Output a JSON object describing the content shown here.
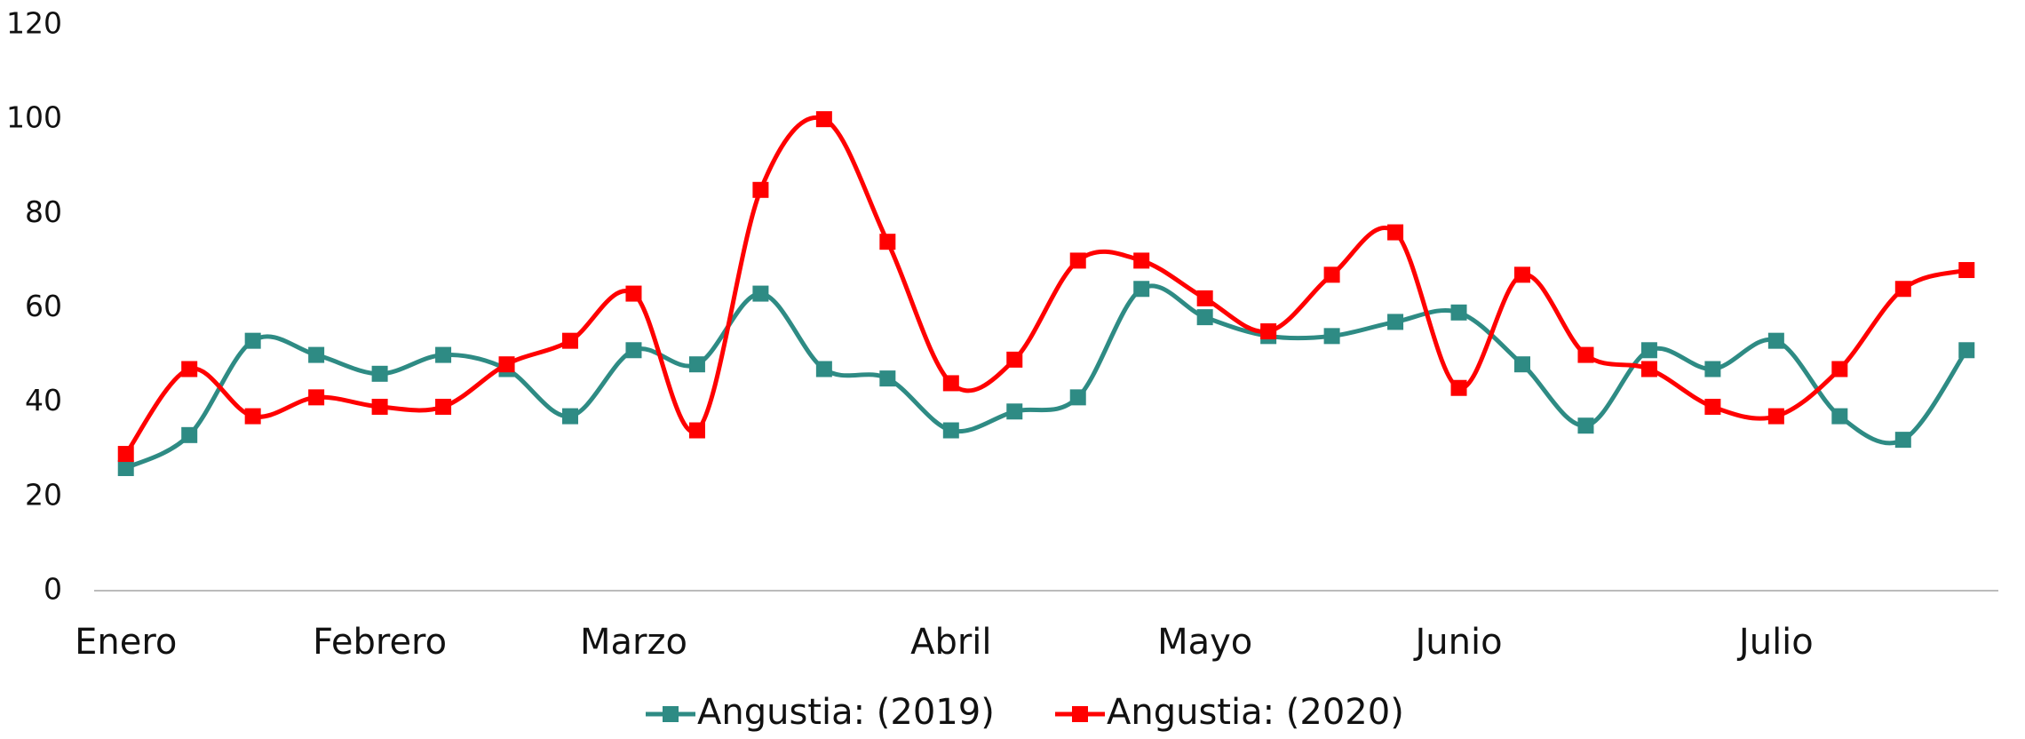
{
  "chart_data": {
    "type": "line",
    "categories": [
      "Enero",
      null,
      null,
      null,
      "Febrero",
      null,
      null,
      null,
      "Marzo",
      null,
      null,
      null,
      null,
      "Abril",
      null,
      null,
      null,
      "Mayo",
      null,
      null,
      null,
      "Junio",
      null,
      null,
      null,
      null,
      "Julio",
      null,
      null,
      null
    ],
    "series": [
      {
        "name": "Angustia: (2019)",
        "color": "#2e8b84",
        "values": [
          26,
          33,
          53,
          50,
          46,
          50,
          47,
          37,
          51,
          48,
          63,
          47,
          45,
          34,
          38,
          41,
          64,
          58,
          54,
          54,
          57,
          59,
          48,
          35,
          51,
          47,
          53,
          37,
          32,
          51
        ]
      },
      {
        "name": "Angustia: (2020)",
        "color": "#ff0000",
        "values": [
          29,
          47,
          37,
          41,
          39,
          39,
          48,
          53,
          63,
          34,
          85,
          100,
          74,
          44,
          49,
          70,
          70,
          62,
          55,
          67,
          76,
          43,
          67,
          50,
          47,
          39,
          37,
          47,
          64,
          68
        ]
      }
    ],
    "ylim": [
      0,
      120
    ],
    "yticks": [
      0,
      20,
      40,
      60,
      80,
      100,
      120
    ],
    "grid": false,
    "smooth": true,
    "legend": "bottom"
  }
}
